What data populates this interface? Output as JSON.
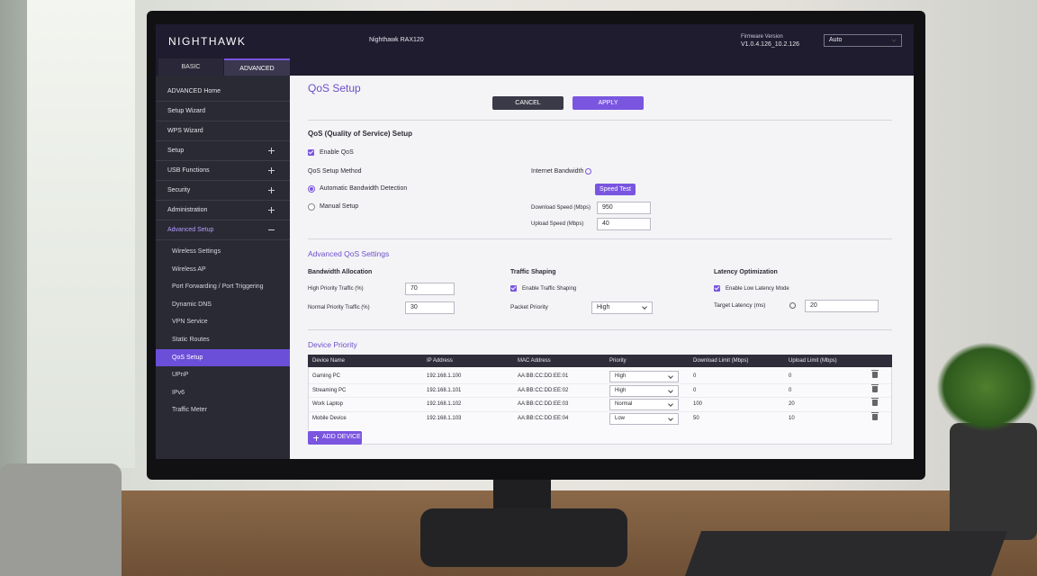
{
  "header": {
    "logo": "NIGHTHAWK",
    "model": "Nighthawk RAX120",
    "firmware_label": "Firmware Version",
    "firmware_version": "V1.0.4.126_10.2.126",
    "language": "Auto"
  },
  "tabs": [
    "BASIC",
    "ADVANCED"
  ],
  "sidebar": {
    "items": [
      "ADVANCED Home",
      "Setup Wizard",
      "WPS Wizard",
      "Setup",
      "USB Functions",
      "Security",
      "Administration",
      "Advanced Setup"
    ],
    "subitems": [
      "Wireless Settings",
      "Wireless AP",
      "Port Forwarding / Port Triggering",
      "Dynamic DNS",
      "VPN Service",
      "Static Routes",
      "QoS Setup",
      "UPnP",
      "IPv6",
      "Traffic Meter"
    ]
  },
  "page": {
    "title": "QoS Setup",
    "buttons": [
      "CANCEL",
      "APPLY"
    ]
  },
  "qos_setup": {
    "title": "QoS (Quality of Service) Setup",
    "enable": "Enable QoS",
    "method_label": "QoS Setup Method",
    "methods": [
      "Automatic Bandwidth Detection",
      "Manual Setup"
    ],
    "bandwidth_label": "Internet Bandwidth",
    "speed_test": "Speed Test",
    "download_label": "Download Speed (Mbps)",
    "download": 950,
    "upload_label": "Upload Speed (Mbps)",
    "upload": 40
  },
  "advanced": {
    "title": "Advanced QoS Settings",
    "bandwidth_allocation": {
      "title": "Bandwidth Allocation",
      "high_label": "High Priority Traffic (%)",
      "high": 70,
      "normal_label": "Normal Priority Traffic (%)",
      "normal": 30
    },
    "traffic_shaping": {
      "title": "Traffic Shaping",
      "enable": "Enable Traffic Shaping",
      "packet_priority_label": "Packet Priority",
      "packet_priority": "High"
    },
    "latency": {
      "title": "Latency Optimization",
      "enable": "Enable Low Latency Mode",
      "target_label": "Target Latency (ms)",
      "target": 20
    }
  },
  "device_priority": {
    "title": "Device Priority",
    "columns": [
      "Device Name",
      "IP Address",
      "MAC Address",
      "Priority",
      "Download Limit (Mbps)",
      "Upload Limit (Mbps)"
    ],
    "rows": [
      [
        "Gaming PC",
        "192.168.1.100",
        "AA:BB:CC:DD:EE:01",
        "High",
        0,
        0
      ],
      [
        "Streaming PC",
        "192.168.1.101",
        "AA:BB:CC:DD:EE:02",
        "High",
        0,
        0
      ],
      [
        "Work Laptop",
        "192.168.1.102",
        "AA:BB:CC:DD:EE:03",
        "Normal",
        100,
        20
      ],
      [
        "Mobile Device",
        "192.168.1.103",
        "AA:BB:CC:DD:EE:04",
        "Low",
        50,
        10
      ]
    ],
    "add_button": "ADD DEVICE"
  }
}
